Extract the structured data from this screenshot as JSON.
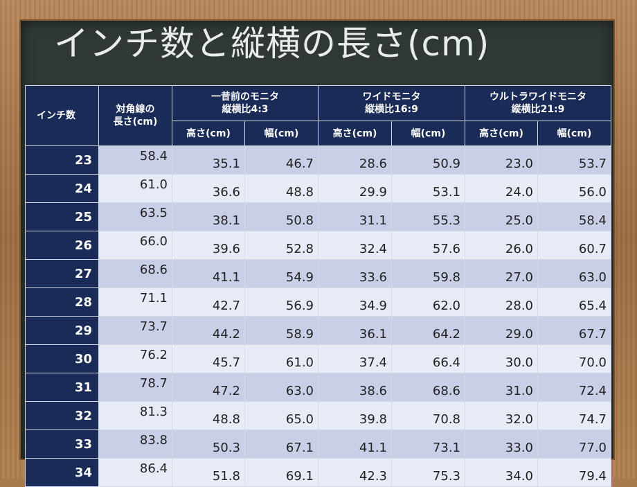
{
  "title": "インチ数と縦横の長さ(cm)",
  "table": {
    "headers": {
      "inch": "インチ数",
      "diagonal_line1": "対角線の",
      "diagonal_line2": "長さ(cm)",
      "groups": [
        {
          "line1": "一昔前のモニタ",
          "line2": "縦横比4:3"
        },
        {
          "line1": "ワイドモニタ",
          "line2": "縦横比16:9"
        },
        {
          "line1": "ウルトラワイドモニタ",
          "line2": "縦横比21:9"
        }
      ],
      "height": "高さ(cm)",
      "width": "幅(cm)"
    },
    "rows": [
      {
        "inch": "23",
        "diagonal": "58.4",
        "h43": "35.1",
        "w43": "46.7",
        "h169": "28.6",
        "w169": "50.9",
        "h219": "23.0",
        "w219": "53.7"
      },
      {
        "inch": "24",
        "diagonal": "61.0",
        "h43": "36.6",
        "w43": "48.8",
        "h169": "29.9",
        "w169": "53.1",
        "h219": "24.0",
        "w219": "56.0"
      },
      {
        "inch": "25",
        "diagonal": "63.5",
        "h43": "38.1",
        "w43": "50.8",
        "h169": "31.1",
        "w169": "55.3",
        "h219": "25.0",
        "w219": "58.4"
      },
      {
        "inch": "26",
        "diagonal": "66.0",
        "h43": "39.6",
        "w43": "52.8",
        "h169": "32.4",
        "w169": "57.6",
        "h219": "26.0",
        "w219": "60.7"
      },
      {
        "inch": "27",
        "diagonal": "68.6",
        "h43": "41.1",
        "w43": "54.9",
        "h169": "33.6",
        "w169": "59.8",
        "h219": "27.0",
        "w219": "63.0"
      },
      {
        "inch": "28",
        "diagonal": "71.1",
        "h43": "42.7",
        "w43": "56.9",
        "h169": "34.9",
        "w169": "62.0",
        "h219": "28.0",
        "w219": "65.4"
      },
      {
        "inch": "29",
        "diagonal": "73.7",
        "h43": "44.2",
        "w43": "58.9",
        "h169": "36.1",
        "w169": "64.2",
        "h219": "29.0",
        "w219": "67.7"
      },
      {
        "inch": "30",
        "diagonal": "76.2",
        "h43": "45.7",
        "w43": "61.0",
        "h169": "37.4",
        "w169": "66.4",
        "h219": "30.0",
        "w219": "70.0"
      },
      {
        "inch": "31",
        "diagonal": "78.7",
        "h43": "47.2",
        "w43": "63.0",
        "h169": "38.6",
        "w169": "68.6",
        "h219": "31.0",
        "w219": "72.4"
      },
      {
        "inch": "32",
        "diagonal": "81.3",
        "h43": "48.8",
        "w43": "65.0",
        "h169": "39.8",
        "w169": "70.8",
        "h219": "32.0",
        "w219": "74.7"
      },
      {
        "inch": "33",
        "diagonal": "83.8",
        "h43": "50.3",
        "w43": "67.1",
        "h169": "41.1",
        "w169": "73.1",
        "h219": "33.0",
        "w219": "77.0"
      },
      {
        "inch": "34",
        "diagonal": "86.4",
        "h43": "51.8",
        "w43": "69.1",
        "h169": "42.3",
        "w169": "75.3",
        "h219": "34.0",
        "w219": "79.4"
      }
    ]
  }
}
